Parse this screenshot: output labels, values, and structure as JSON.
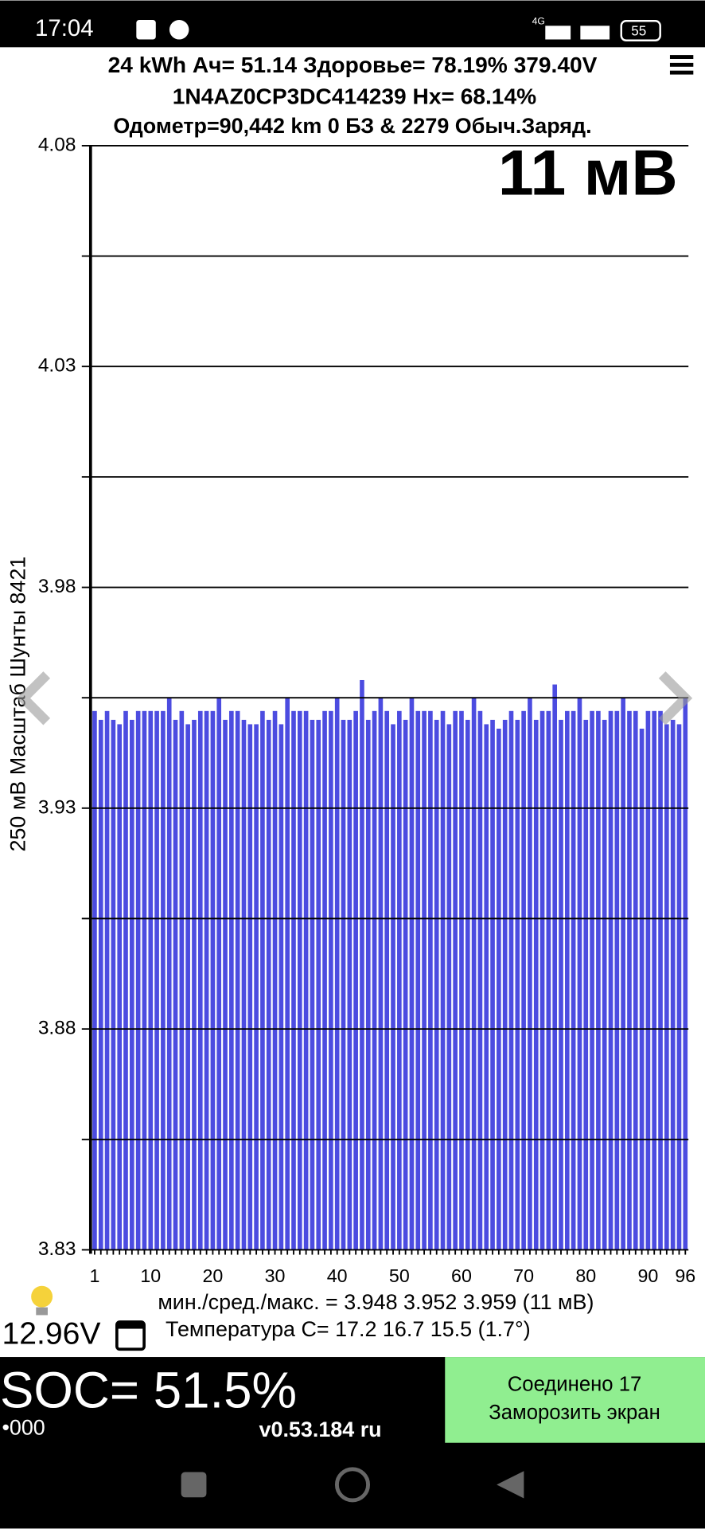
{
  "status_bar": {
    "time": "17:04",
    "network": "4G",
    "battery": "55"
  },
  "header": {
    "line1": "24 kWh  Ач= 51.14  Здоровье= 78.19%  379.40V",
    "line2": "1N4AZ0CP3DC414239   Hx= 68.14%",
    "line3": "Одометр=90,442 km 0 БЗ & 2279 Обыч.Заряд."
  },
  "chart_data": {
    "type": "bar",
    "annotation": "11 мВ",
    "y_label": "250 мВ Масштаб  Шунты 8421",
    "color": "#4c4ce0",
    "categories": [
      "1",
      null,
      null,
      null,
      null,
      null,
      null,
      null,
      null,
      "10",
      null,
      null,
      null,
      null,
      null,
      null,
      null,
      null,
      null,
      "20",
      null,
      null,
      null,
      null,
      null,
      null,
      null,
      null,
      null,
      "30",
      null,
      null,
      null,
      null,
      null,
      null,
      null,
      null,
      null,
      "40",
      null,
      null,
      null,
      null,
      null,
      null,
      null,
      null,
      null,
      "50",
      null,
      null,
      null,
      null,
      null,
      null,
      null,
      null,
      null,
      "60",
      null,
      null,
      null,
      null,
      null,
      null,
      null,
      null,
      null,
      "70",
      null,
      null,
      null,
      null,
      null,
      null,
      null,
      null,
      null,
      "80",
      null,
      null,
      null,
      null,
      null,
      null,
      null,
      null,
      null,
      "90",
      null,
      null,
      null,
      null,
      null,
      "96"
    ],
    "values": [
      3.952,
      3.95,
      3.952,
      3.95,
      3.949,
      3.952,
      3.95,
      3.952,
      3.952,
      3.952,
      3.952,
      3.952,
      3.955,
      3.95,
      3.952,
      3.949,
      3.95,
      3.952,
      3.952,
      3.952,
      3.955,
      3.95,
      3.952,
      3.952,
      3.95,
      3.949,
      3.949,
      3.952,
      3.95,
      3.952,
      3.949,
      3.955,
      3.952,
      3.952,
      3.952,
      3.95,
      3.95,
      3.952,
      3.952,
      3.955,
      3.95,
      3.95,
      3.952,
      3.959,
      3.95,
      3.952,
      3.955,
      3.952,
      3.949,
      3.952,
      3.95,
      3.955,
      3.952,
      3.952,
      3.952,
      3.95,
      3.952,
      3.949,
      3.952,
      3.952,
      3.95,
      3.955,
      3.952,
      3.949,
      3.95,
      3.948,
      3.95,
      3.952,
      3.95,
      3.952,
      3.955,
      3.95,
      3.952,
      3.952,
      3.958,
      3.95,
      3.952,
      3.952,
      3.955,
      3.95,
      3.952,
      3.952,
      3.95,
      3.952,
      3.952,
      3.955,
      3.952,
      3.952,
      3.948,
      3.952,
      3.952,
      3.952,
      3.949,
      3.95,
      3.949,
      3.955
    ],
    "ylim": [
      3.83,
      4.08
    ],
    "yticks": [
      3.83,
      3.88,
      3.93,
      3.98,
      4.03,
      4.08
    ],
    "minor_yticks": [
      3.855,
      3.905,
      3.955,
      4.005,
      4.055
    ],
    "grid": true
  },
  "stats": {
    "minmax": "мин./сред./макс. = 3.948 3.952 3.959  (11 мВ)",
    "aux_voltage": "12.96V",
    "temperature": "Температура С= 17.2  16.7  15.5  (1.7°)"
  },
  "footer": {
    "soc": "SOC= 51.5%",
    "dots": "•000",
    "version": "v0.53.184 ru",
    "button_line1": "Соединено 17",
    "button_line2": "Заморозить экран"
  }
}
